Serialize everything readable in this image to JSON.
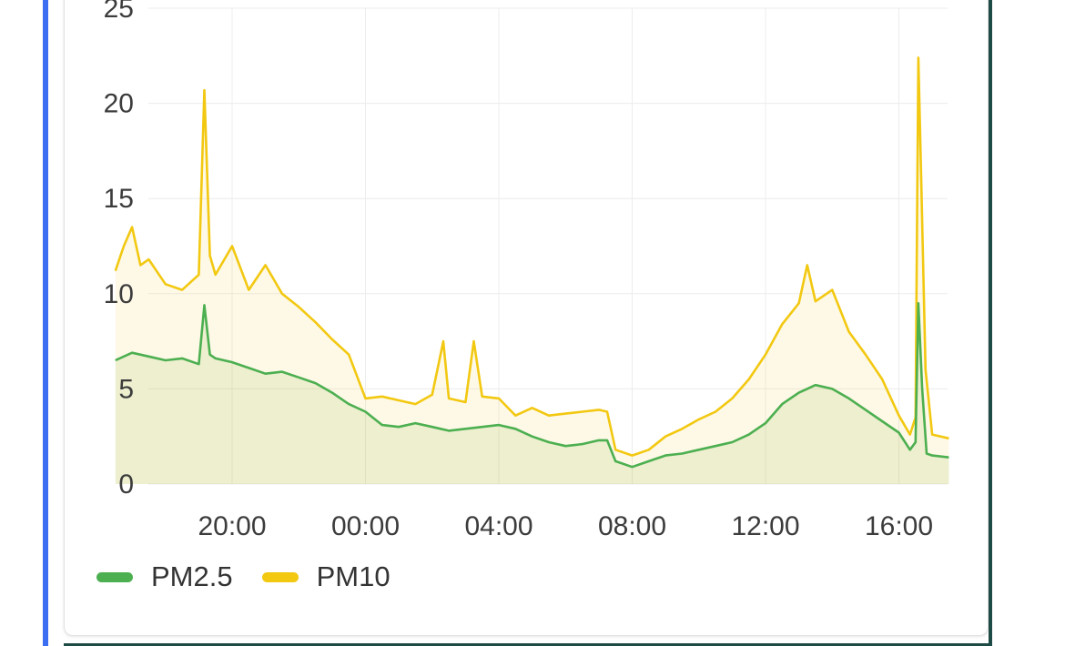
{
  "colors": {
    "pm25": "#4caf50",
    "pm10": "#f2c811",
    "grid": "#ececec"
  },
  "chart_data": {
    "type": "line",
    "x_unit": "time of day (HH:MM)",
    "x_range": [
      "16:30",
      "17:30 (+1 day)"
    ],
    "ylim": [
      0,
      25
    ],
    "y_ticks": [
      "0",
      "5",
      "10",
      "15",
      "20",
      "25"
    ],
    "x_ticks": [
      "20:00",
      "00:00",
      "04:00",
      "08:00",
      "12:00",
      "16:00"
    ],
    "grid": true,
    "legend_position": "bottom-left",
    "series": [
      {
        "name": "PM2.5",
        "color": "#4caf50",
        "points": [
          [
            "16:30",
            6.5
          ],
          [
            "17:00",
            6.9
          ],
          [
            "17:30",
            6.7
          ],
          [
            "18:00",
            6.5
          ],
          [
            "18:30",
            6.6
          ],
          [
            "19:00",
            6.3
          ],
          [
            "19:10",
            9.4
          ],
          [
            "19:20",
            6.8
          ],
          [
            "19:30",
            6.6
          ],
          [
            "20:00",
            6.4
          ],
          [
            "20:30",
            6.1
          ],
          [
            "21:00",
            5.8
          ],
          [
            "21:30",
            5.9
          ],
          [
            "22:00",
            5.6
          ],
          [
            "22:30",
            5.3
          ],
          [
            "23:00",
            4.8
          ],
          [
            "23:30",
            4.2
          ],
          [
            "00:00",
            3.8
          ],
          [
            "00:30",
            3.1
          ],
          [
            "01:00",
            3.0
          ],
          [
            "01:30",
            3.2
          ],
          [
            "02:00",
            3.0
          ],
          [
            "02:30",
            2.8
          ],
          [
            "03:00",
            2.9
          ],
          [
            "03:30",
            3.0
          ],
          [
            "04:00",
            3.1
          ],
          [
            "04:30",
            2.9
          ],
          [
            "05:00",
            2.5
          ],
          [
            "05:30",
            2.2
          ],
          [
            "06:00",
            2.0
          ],
          [
            "06:30",
            2.1
          ],
          [
            "07:00",
            2.3
          ],
          [
            "07:15",
            2.3
          ],
          [
            "07:30",
            1.2
          ],
          [
            "08:00",
            0.9
          ],
          [
            "08:30",
            1.2
          ],
          [
            "09:00",
            1.5
          ],
          [
            "09:30",
            1.6
          ],
          [
            "10:00",
            1.8
          ],
          [
            "10:30",
            2.0
          ],
          [
            "11:00",
            2.2
          ],
          [
            "11:30",
            2.6
          ],
          [
            "12:00",
            3.2
          ],
          [
            "12:30",
            4.2
          ],
          [
            "13:00",
            4.8
          ],
          [
            "13:30",
            5.2
          ],
          [
            "14:00",
            5.0
          ],
          [
            "14:30",
            4.5
          ],
          [
            "15:00",
            3.9
          ],
          [
            "15:30",
            3.3
          ],
          [
            "16:00",
            2.7
          ],
          [
            "16:20",
            1.8
          ],
          [
            "16:30",
            2.2
          ],
          [
            "16:35",
            9.5
          ],
          [
            "16:42",
            5.0
          ],
          [
            "16:50",
            1.6
          ],
          [
            "17:00",
            1.5
          ],
          [
            "17:30",
            1.4
          ]
        ]
      },
      {
        "name": "PM10",
        "color": "#f2c811",
        "points": [
          [
            "16:30",
            11.2
          ],
          [
            "16:45",
            12.5
          ],
          [
            "17:00",
            13.5
          ],
          [
            "17:15",
            11.5
          ],
          [
            "17:30",
            11.8
          ],
          [
            "18:00",
            10.5
          ],
          [
            "18:30",
            10.2
          ],
          [
            "19:00",
            11.0
          ],
          [
            "19:10",
            20.7
          ],
          [
            "19:20",
            12.0
          ],
          [
            "19:30",
            11.0
          ],
          [
            "20:00",
            12.5
          ],
          [
            "20:30",
            10.2
          ],
          [
            "21:00",
            11.5
          ],
          [
            "21:30",
            10.0
          ],
          [
            "22:00",
            9.3
          ],
          [
            "22:30",
            8.5
          ],
          [
            "23:00",
            7.6
          ],
          [
            "23:30",
            6.8
          ],
          [
            "00:00",
            4.5
          ],
          [
            "00:30",
            4.6
          ],
          [
            "01:00",
            4.4
          ],
          [
            "01:30",
            4.2
          ],
          [
            "02:00",
            4.7
          ],
          [
            "02:20",
            7.5
          ],
          [
            "02:30",
            4.5
          ],
          [
            "03:00",
            4.3
          ],
          [
            "03:15",
            7.5
          ],
          [
            "03:30",
            4.6
          ],
          [
            "04:00",
            4.5
          ],
          [
            "04:30",
            3.6
          ],
          [
            "05:00",
            4.0
          ],
          [
            "05:30",
            3.6
          ],
          [
            "06:00",
            3.7
          ],
          [
            "06:30",
            3.8
          ],
          [
            "07:00",
            3.9
          ],
          [
            "07:15",
            3.8
          ],
          [
            "07:30",
            1.8
          ],
          [
            "08:00",
            1.5
          ],
          [
            "08:30",
            1.8
          ],
          [
            "09:00",
            2.5
          ],
          [
            "09:30",
            2.9
          ],
          [
            "10:00",
            3.4
          ],
          [
            "10:30",
            3.8
          ],
          [
            "11:00",
            4.5
          ],
          [
            "11:30",
            5.5
          ],
          [
            "12:00",
            6.8
          ],
          [
            "12:30",
            8.4
          ],
          [
            "13:00",
            9.5
          ],
          [
            "13:15",
            11.5
          ],
          [
            "13:30",
            9.6
          ],
          [
            "14:00",
            10.2
          ],
          [
            "14:30",
            8.0
          ],
          [
            "15:00",
            6.8
          ],
          [
            "15:30",
            5.5
          ],
          [
            "16:00",
            3.6
          ],
          [
            "16:20",
            2.6
          ],
          [
            "16:30",
            3.5
          ],
          [
            "16:35",
            22.4
          ],
          [
            "16:40",
            16.3
          ],
          [
            "16:48",
            6.0
          ],
          [
            "17:00",
            2.6
          ],
          [
            "17:30",
            2.4
          ]
        ]
      }
    ]
  },
  "legend": {
    "pm25_label": "PM2.5",
    "pm10_label": "PM10"
  }
}
